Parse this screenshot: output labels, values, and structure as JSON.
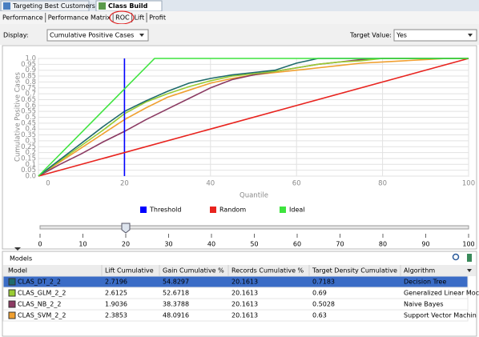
{
  "tabs": [
    "Targeting Best Customers",
    "Class Build"
  ],
  "subtabs": [
    "Performance",
    "Performance Matrix",
    "ROC",
    "Lift",
    "Profit"
  ],
  "display": {
    "label": "Display:",
    "value": "Cumulative Positive Cases"
  },
  "target": {
    "label": "Target Value:",
    "value": "Yes"
  },
  "chart_data": {
    "type": "line",
    "y_label": "Cumulative Positive Cases",
    "x_label": "Quantile",
    "xlim": [
      0,
      100
    ],
    "xticks": [
      0,
      20,
      40,
      60,
      80,
      100
    ],
    "ylim": [
      0,
      1
    ],
    "yticks": [
      {
        "value": 0,
        "label": "0.0"
      },
      0.05,
      0.1,
      0.15,
      0.2,
      0.25,
      0.3,
      0.35,
      0.4,
      0.45,
      0.5,
      0.55,
      0.6,
      0.65,
      0.7,
      0.75,
      0.8,
      0.85,
      0.9,
      0.95,
      {
        "value": 1,
        "label": "1.0"
      }
    ],
    "grid": true,
    "series": [
      {
        "name": "Threshold",
        "color": "#0000ff",
        "x": [
          20,
          20
        ],
        "values": [
          0,
          1
        ]
      },
      {
        "name": "Random",
        "color": "#e8231e",
        "x": [
          0,
          100
        ],
        "values": [
          0,
          1
        ]
      },
      {
        "name": "Ideal",
        "color": "#3ee43e",
        "x": [
          0,
          27,
          100
        ],
        "values": [
          0,
          1,
          1
        ]
      }
    ],
    "model_curves": {
      "x": [
        0,
        5,
        10,
        15,
        20,
        25,
        30,
        35,
        40,
        45,
        50,
        55,
        60,
        65,
        70,
        75,
        80,
        85,
        90,
        95,
        100
      ],
      "lines": [
        {
          "color": "#1f6b6b",
          "values": [
            0,
            0.14,
            0.28,
            0.42,
            0.55,
            0.64,
            0.72,
            0.79,
            0.83,
            0.86,
            0.88,
            0.9,
            0.96,
            1,
            1,
            1,
            1,
            1,
            1,
            1,
            1
          ]
        },
        {
          "color": "#99cc33",
          "values": [
            0,
            0.13,
            0.26,
            0.39,
            0.53,
            0.63,
            0.7,
            0.76,
            0.81,
            0.85,
            0.87,
            0.89,
            0.92,
            0.95,
            0.97,
            0.98,
            1,
            1,
            1,
            1,
            1
          ]
        },
        {
          "color": "#8b3a62",
          "values": [
            0,
            0.1,
            0.19,
            0.29,
            0.38,
            0.48,
            0.57,
            0.66,
            0.75,
            0.82,
            0.86,
            0.89,
            0.92,
            0.95,
            0.97,
            0.99,
            1,
            1,
            1,
            1,
            1
          ]
        },
        {
          "color": "#f0a030",
          "values": [
            0,
            0.12,
            0.24,
            0.36,
            0.48,
            0.58,
            0.67,
            0.73,
            0.79,
            0.83,
            0.86,
            0.88,
            0.9,
            0.92,
            0.94,
            0.96,
            0.97,
            0.98,
            0.99,
            1,
            1
          ]
        }
      ]
    }
  },
  "slider": {
    "xlim": [
      0,
      100
    ],
    "xticks": [
      0,
      10,
      20,
      30,
      40,
      50,
      60,
      70,
      80,
      90,
      100
    ],
    "value": 20
  },
  "models": {
    "title": "Models",
    "columns": [
      "Model",
      "Lift Cumulative",
      "Gain Cumulative %",
      "Records Cumulative %",
      "Target Density Cumulative",
      "Algorithm"
    ],
    "rows": [
      [
        "CLAS_DT_2_2",
        "2.7196",
        "54.8297",
        "20.1613",
        "0.7183",
        "Decision Tree"
      ],
      [
        "CLAS_GLM_2_2",
        "2.6125",
        "52.6718",
        "20.1613",
        "0.69",
        "Generalized Linear Moc"
      ],
      [
        "CLAS_NB_2_2",
        "1.9036",
        "38.3788",
        "20.1613",
        "0.5028",
        "Naive Bayes"
      ],
      [
        "CLAS_SVM_2_2",
        "2.3853",
        "48.0916",
        "20.1613",
        "0.63",
        "Support Vector Machin"
      ]
    ]
  }
}
